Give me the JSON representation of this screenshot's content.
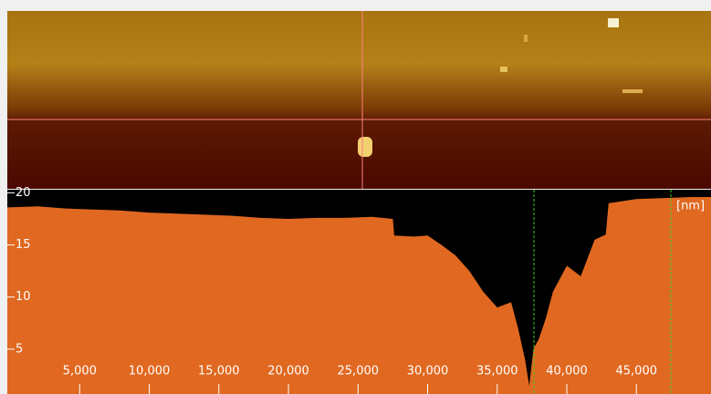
{
  "chart_data": {
    "type": "area",
    "unit": "[nm]",
    "x": [
      -200,
      2000,
      4000,
      6000,
      8000,
      10000,
      12000,
      14000,
      16000,
      18000,
      20000,
      22000,
      24000,
      26000,
      27500,
      27600,
      29000,
      30000,
      31000,
      32000,
      33000,
      34000,
      35000,
      36000,
      36500,
      37000,
      37300,
      37600,
      38000,
      38500,
      39000,
      40000,
      41000,
      42000,
      42800,
      43000,
      45000,
      47000,
      49000,
      50360
    ],
    "values": [
      18.6,
      18.7,
      18.5,
      18.4,
      18.3,
      18.1,
      18.0,
      17.9,
      17.8,
      17.6,
      17.5,
      17.6,
      17.6,
      17.7,
      17.5,
      15.9,
      15.8,
      15.9,
      15.0,
      14.0,
      12.5,
      10.5,
      9.0,
      9.5,
      7.0,
      4.0,
      1.5,
      5.0,
      6.0,
      8.0,
      10.5,
      13.0,
      12.0,
      15.5,
      16.0,
      19.0,
      19.4,
      19.5,
      19.6,
      19.6
    ],
    "color": "#e06820",
    "background": "#000000",
    "xlim": [
      -200,
      50360
    ],
    "ylim": [
      0.7,
      20.3
    ],
    "xticks": [
      {
        "value": 5000,
        "label": "5,000"
      },
      {
        "value": 10000,
        "label": "10,000"
      },
      {
        "value": 15000,
        "label": "15,000"
      },
      {
        "value": 20000,
        "label": "20,000"
      },
      {
        "value": 25000,
        "label": "25,000"
      },
      {
        "value": 30000,
        "label": "30,000"
      },
      {
        "value": 35000,
        "label": "35,000"
      },
      {
        "value": 40000,
        "label": "40,000"
      },
      {
        "value": 45000,
        "label": "45,000"
      }
    ],
    "yticks": [
      20,
      15,
      10,
      5
    ],
    "cursors": [
      37640,
      47475
    ]
  }
}
